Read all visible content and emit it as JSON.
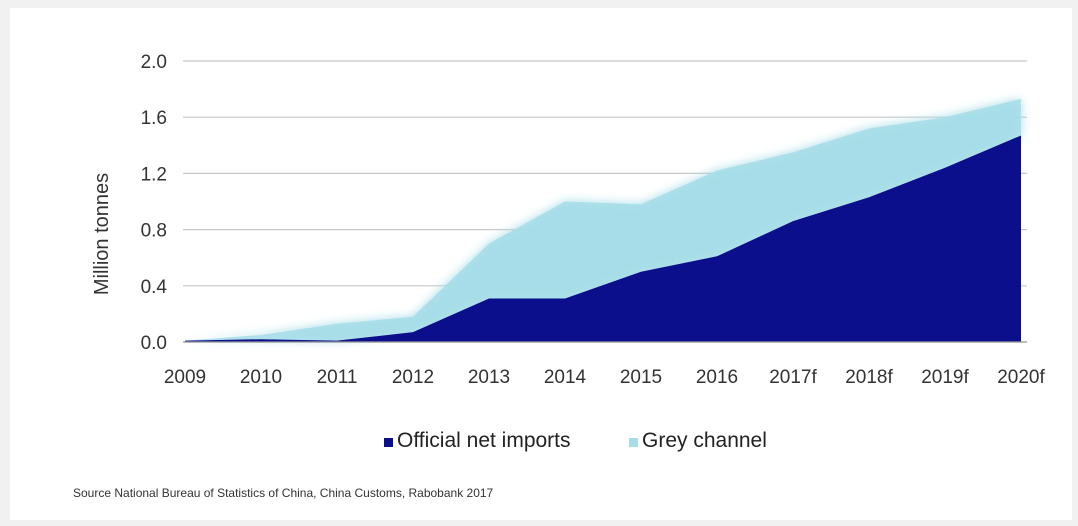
{
  "chart_data": {
    "type": "area",
    "stacked": true,
    "categories": [
      "2009",
      "2010",
      "2011",
      "2012",
      "2013",
      "2014",
      "2015",
      "2016",
      "2017f",
      "2018f",
      "2019f",
      "2020f"
    ],
    "series": [
      {
        "name": "Official net imports",
        "color": "#0b0f8c",
        "values": [
          0.01,
          0.02,
          0.01,
          0.07,
          0.31,
          0.31,
          0.5,
          0.61,
          0.86,
          1.03,
          1.24,
          1.47
        ]
      },
      {
        "name": "Grey channel",
        "color": "#a6dde8",
        "values": [
          0.0,
          0.03,
          0.12,
          0.11,
          0.39,
          0.69,
          0.48,
          0.61,
          0.49,
          0.49,
          0.36,
          0.26
        ]
      }
    ],
    "ylabel": "Million tonnes",
    "ylim": [
      0,
      2.0
    ],
    "yticks": [
      "0.0",
      "0.4",
      "0.8",
      "1.2",
      "1.6",
      "2.0"
    ],
    "grid": true,
    "legend": "bottom-center"
  },
  "source_note": "Source National Bureau of Statistics of China, China Customs, Rabobank 2017"
}
